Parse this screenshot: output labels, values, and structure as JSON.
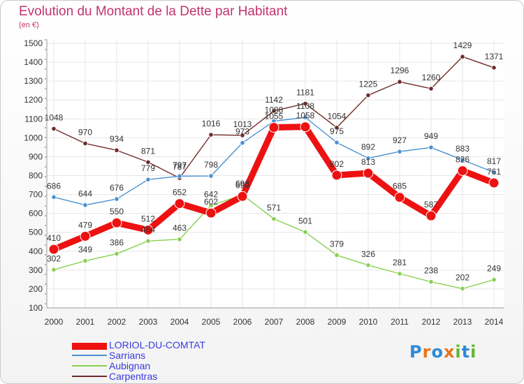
{
  "chart_data": {
    "type": "line",
    "title": "Evolution du Montant de la Dette par Habitant",
    "subtitle": "(en €)",
    "categories": [
      "2000",
      "2001",
      "2002",
      "2003",
      "2004",
      "2005",
      "2006",
      "2007",
      "2008",
      "2009",
      "2010",
      "2011",
      "2012",
      "2013",
      "2014"
    ],
    "ylim": [
      100,
      1500
    ],
    "yticks": [
      100,
      200,
      300,
      400,
      500,
      600,
      700,
      800,
      900,
      1000,
      1100,
      1200,
      1300,
      1400,
      1500
    ],
    "grid": true,
    "series": [
      {
        "name": "LORIOL-DU-COMTAT",
        "color": "#ee1111",
        "values": [
          410,
          479,
          550,
          512,
          652,
          602,
          690,
          1055,
          1058,
          802,
          813,
          685,
          587,
          826,
          761
        ]
      },
      {
        "name": "Sarrians",
        "color": "#4a90d0",
        "values": [
          686,
          644,
          676,
          779,
          797,
          798,
          973,
          1088,
          1108,
          975,
          892,
          927,
          949,
          883,
          817
        ]
      },
      {
        "name": "Aubignan",
        "color": "#88d050",
        "values": [
          302,
          349,
          386,
          454,
          463,
          642,
          698,
          571,
          501,
          379,
          326,
          281,
          238,
          202,
          249
        ]
      },
      {
        "name": "Carpentras",
        "color": "#702a2a",
        "values": [
          1048,
          970,
          934,
          871,
          787,
          1016,
          1013,
          1142,
          1181,
          1054,
          1225,
          1296,
          1260,
          1429,
          1371
        ]
      }
    ]
  },
  "logo": {
    "text": "Proxiti"
  }
}
